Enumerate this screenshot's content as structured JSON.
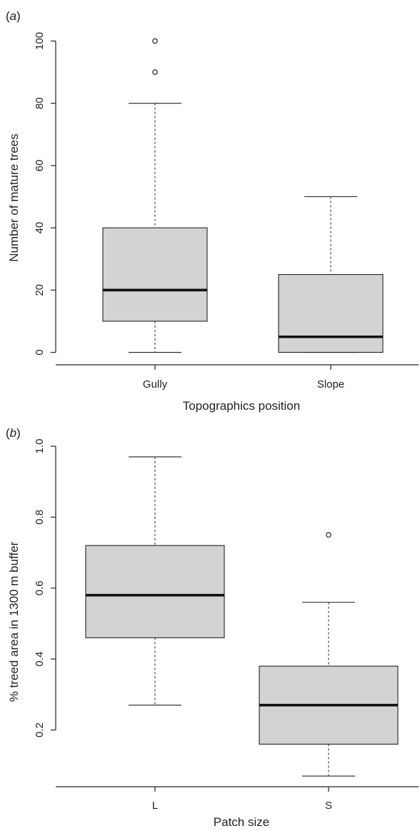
{
  "chart_data": [
    {
      "type": "box",
      "panel_label": "a",
      "xlabel": "Topographics position",
      "ylabel": "Number of mature trees",
      "ylim": [
        -4,
        104
      ],
      "yticks": [
        0,
        20,
        40,
        60,
        80,
        100
      ],
      "ytick_labels": [
        "0",
        "20",
        "40",
        "60",
        "80",
        "100"
      ],
      "box_fill": "#d3d3d4",
      "categories": [
        "Gully",
        "Slope"
      ],
      "boxes": [
        {
          "category": "Gully",
          "whisker_low": 0,
          "q1": 10,
          "median": 20,
          "q3": 40,
          "whisker_high": 80,
          "outliers": [
            90,
            100
          ]
        },
        {
          "category": "Slope",
          "whisker_low": 0,
          "q1": 0,
          "median": 5,
          "q3": 25,
          "whisker_high": 50,
          "outliers": []
        }
      ]
    },
    {
      "type": "box",
      "panel_label": "b",
      "xlabel": "Patch size",
      "ylabel": "% treed area in 1300 m buffer",
      "ylim": [
        0.04,
        1.0
      ],
      "yticks": [
        0.2,
        0.4,
        0.6,
        0.8,
        1.0
      ],
      "ytick_labels": [
        "0.2",
        "0.4",
        "0.6",
        "0.8",
        "1.0"
      ],
      "box_fill": "#d3d3d4",
      "categories": [
        "L",
        "S"
      ],
      "boxes": [
        {
          "category": "L",
          "whisker_low": 0.27,
          "q1": 0.46,
          "median": 0.58,
          "q3": 0.72,
          "whisker_high": 0.97,
          "outliers": []
        },
        {
          "category": "S",
          "whisker_low": 0.07,
          "q1": 0.16,
          "median": 0.27,
          "q3": 0.38,
          "whisker_high": 0.56,
          "outliers": [
            0.75
          ]
        }
      ]
    }
  ]
}
